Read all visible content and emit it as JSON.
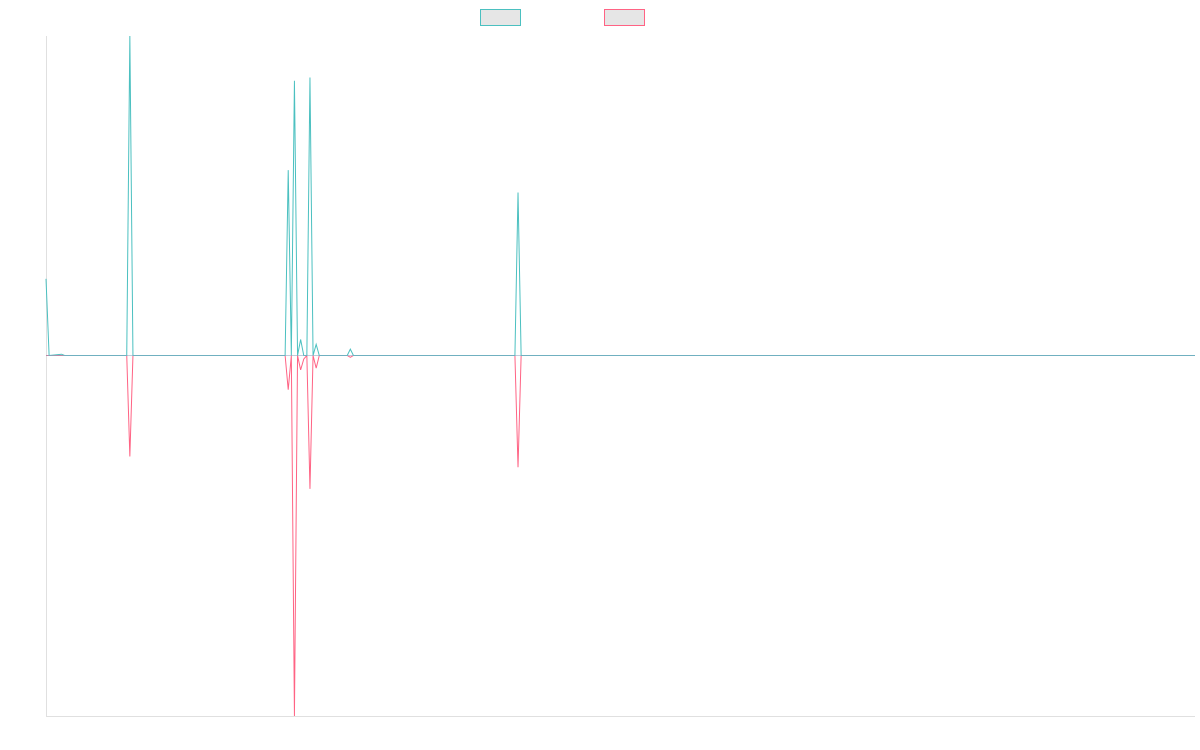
{
  "chart_data": {
    "type": "line",
    "title": "",
    "xlabel": "",
    "ylabel": "",
    "grid": false,
    "legend_position": "top-center",
    "ylim": [
      -1,
      1
    ],
    "x_count": 371,
    "series": [
      {
        "color": "#4bc0c0",
        "fill": "#e6e6e6",
        "points": [
          [
            0,
            0.24
          ],
          [
            1,
            0.0
          ],
          [
            5,
            0.004
          ],
          [
            6,
            0.0
          ],
          [
            26,
            0.0
          ],
          [
            27,
            1.0
          ],
          [
            28,
            0.0
          ],
          [
            77,
            0.0
          ],
          [
            78,
            0.58
          ],
          [
            79,
            0.0
          ],
          [
            80,
            0.86
          ],
          [
            81,
            0.0
          ],
          [
            82,
            0.05
          ],
          [
            83,
            0.0
          ],
          [
            84,
            0.0
          ],
          [
            85,
            0.87
          ],
          [
            86,
            0.0
          ],
          [
            87,
            0.035
          ],
          [
            88,
            0.0
          ],
          [
            97,
            0.0
          ],
          [
            98,
            0.02
          ],
          [
            99,
            0.0
          ],
          [
            151,
            0.0
          ],
          [
            152,
            0.51
          ],
          [
            153,
            0.0
          ],
          [
            370,
            0.0
          ]
        ]
      },
      {
        "color": "#ff6384",
        "fill": "#e6e6e6",
        "points": [
          [
            0,
            0.0
          ],
          [
            26,
            0.0
          ],
          [
            27,
            -0.28
          ],
          [
            28,
            0.0
          ],
          [
            77,
            0.0
          ],
          [
            78,
            -0.095
          ],
          [
            79,
            0.0
          ],
          [
            80,
            -1.0
          ],
          [
            81,
            0.0
          ],
          [
            82,
            -0.04
          ],
          [
            83,
            -0.01
          ],
          [
            84,
            0.0
          ],
          [
            85,
            -0.37
          ],
          [
            86,
            0.0
          ],
          [
            87,
            -0.035
          ],
          [
            88,
            0.0
          ],
          [
            97,
            0.0
          ],
          [
            98,
            -0.005
          ],
          [
            99,
            0.0
          ],
          [
            151,
            0.0
          ],
          [
            152,
            -0.31
          ],
          [
            153,
            0.0
          ],
          [
            370,
            0.0
          ]
        ]
      }
    ]
  }
}
